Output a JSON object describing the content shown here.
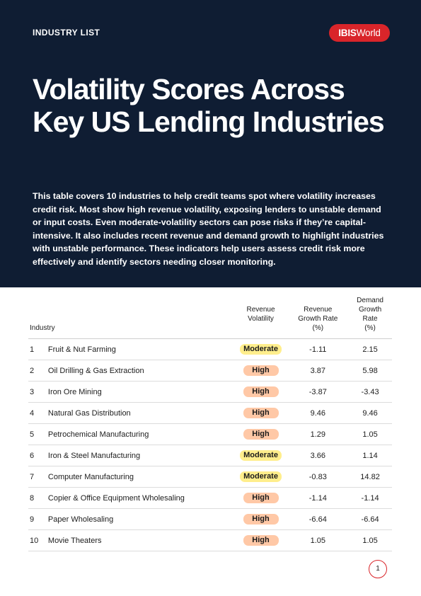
{
  "header": {
    "eyebrow": "INDUSTRY LIST",
    "logo_bold": "IBIS",
    "logo_rest": "World",
    "title": "Volatility Scores Across Key US Lending Industries",
    "intro": "This table covers 10 industries to help credit teams spot where volatility increases credit risk. Most show high revenue volatility, exposing lenders to unstable demand or input costs. Even moderate-volatility sectors can pose risks if they’re capital-intensive. It also includes recent revenue and demand growth to highlight industries with unstable performance. These indicators help users assess credit risk more effectively and identify sectors needing closer monitoring."
  },
  "table": {
    "columns": {
      "industry": "Industry",
      "volatility": [
        "Revenue",
        "Volatility"
      ],
      "revenue_growth": [
        "Revenue",
        "Growth Rate",
        "(%)"
      ],
      "demand_growth": [
        "Demand",
        "Growth",
        "Rate",
        "(%)"
      ]
    },
    "rows": [
      {
        "rank": "1",
        "industry": "Fruit & Nut Farming",
        "volatility": "Moderate",
        "level": "mod",
        "revenue_growth": "-1.11",
        "demand_growth": "2.15"
      },
      {
        "rank": "2",
        "industry": "Oil Drilling & Gas Extraction",
        "volatility": "High",
        "level": "high",
        "revenue_growth": "3.87",
        "demand_growth": "5.98"
      },
      {
        "rank": "3",
        "industry": "Iron Ore Mining",
        "volatility": "High",
        "level": "high",
        "revenue_growth": "-3.87",
        "demand_growth": "-3.43"
      },
      {
        "rank": "4",
        "industry": "Natural Gas Distribution",
        "volatility": "High",
        "level": "high",
        "revenue_growth": "9.46",
        "demand_growth": "9.46"
      },
      {
        "rank": "5",
        "industry": "Petrochemical Manufacturing",
        "volatility": "High",
        "level": "high",
        "revenue_growth": "1.29",
        "demand_growth": "1.05"
      },
      {
        "rank": "6",
        "industry": "Iron & Steel Manufacturing",
        "volatility": "Moderate",
        "level": "mod",
        "revenue_growth": "3.66",
        "demand_growth": "1.14"
      },
      {
        "rank": "7",
        "industry": "Computer Manufacturing",
        "volatility": "Moderate",
        "level": "mod",
        "revenue_growth": "-0.83",
        "demand_growth": "14.82"
      },
      {
        "rank": "8",
        "industry": "Copier & Office Equipment Wholesaling",
        "volatility": "High",
        "level": "high",
        "revenue_growth": "-1.14",
        "demand_growth": "-1.14"
      },
      {
        "rank": "9",
        "industry": "Paper Wholesaling",
        "volatility": "High",
        "level": "high",
        "revenue_growth": "-6.64",
        "demand_growth": "-6.64"
      },
      {
        "rank": "10",
        "industry": "Movie Theaters",
        "volatility": "High",
        "level": "high",
        "revenue_growth": "1.05",
        "demand_growth": "1.05"
      }
    ]
  },
  "footer": {
    "page_number": "1"
  },
  "colors": {
    "navy": "#0f1d33",
    "brand_red": "#d9252a",
    "high_badge": "#ffc8a6",
    "moderate_badge": "#ffee8c"
  }
}
